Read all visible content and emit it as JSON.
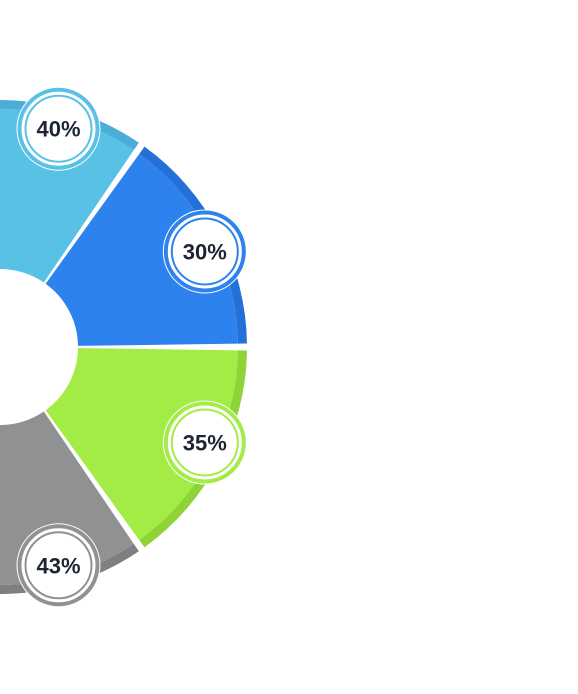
{
  "chart_data": {
    "type": "pie",
    "variant": "donut",
    "title": "",
    "segments": [
      {
        "label": "40%",
        "value": 40,
        "color": "#5ac1e6",
        "rim_color": "#4aaed6"
      },
      {
        "label": "30%",
        "value": 30,
        "color": "#2e82ee",
        "rim_color": "#2370d8"
      },
      {
        "label": "35%",
        "value": 35,
        "color": "#a3ec46",
        "rim_color": "#8ed436"
      },
      {
        "label": "43%",
        "value": 43,
        "color": "#8f9193",
        "rim_color": "#7d7f81"
      }
    ],
    "legend": "none"
  }
}
